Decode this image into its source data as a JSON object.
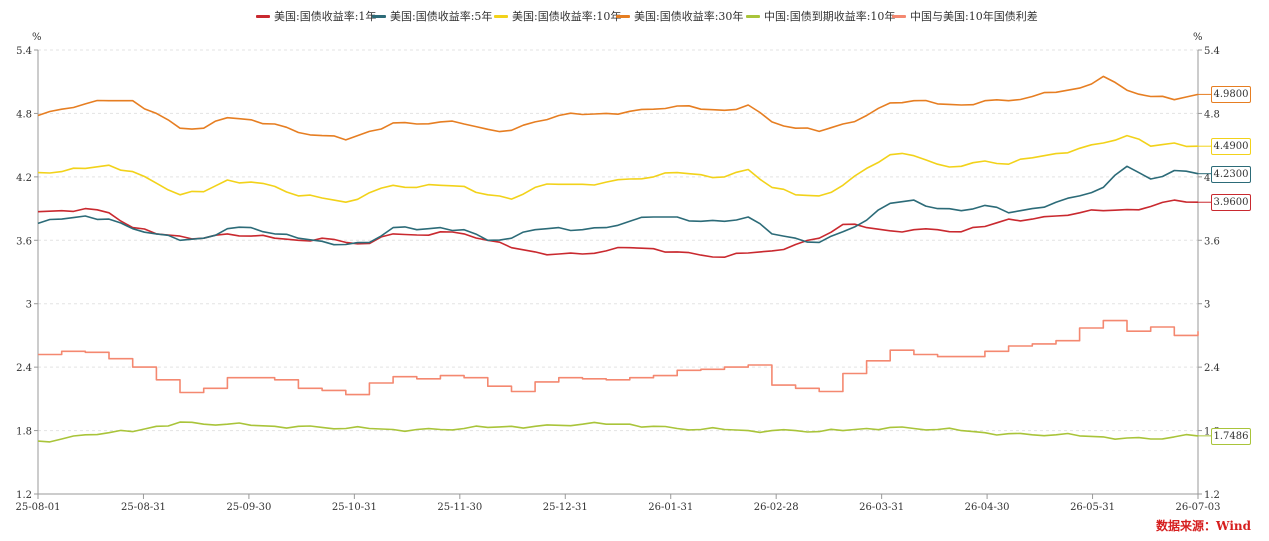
{
  "source": "数据来源：Wind",
  "unit_left": "%",
  "unit_right": "%",
  "chart_data": {
    "type": "line",
    "y_range": [
      1.2,
      5.4
    ],
    "y_ticks": [
      "5.4",
      "4.8",
      "4.2",
      "3.6",
      "3",
      "2.4",
      "1.8",
      "1.2"
    ],
    "x_ticks": [
      "25-08-01",
      "25-08-31",
      "25-09-30",
      "25-10-31",
      "25-11-30",
      "25-12-31",
      "26-01-31",
      "26-02-28",
      "26-03-31",
      "26-04-30",
      "26-05-31",
      "26-07-03"
    ],
    "grid": true,
    "legend": "top",
    "series": [
      {
        "name": "美国:国债收益率:1年",
        "color": "#c9292f",
        "step": false,
        "last_label": "3.9600",
        "values": [
          3.87,
          3.88,
          3.9,
          3.86,
          3.72,
          3.66,
          3.64,
          3.62,
          3.66,
          3.64,
          3.62,
          3.6,
          3.62,
          3.58,
          3.57,
          3.66,
          3.65,
          3.68,
          3.66,
          3.6,
          3.53,
          3.49,
          3.47,
          3.47,
          3.5,
          3.53,
          3.52,
          3.49,
          3.46,
          3.44,
          3.48,
          3.5,
          3.56,
          3.62,
          3.75,
          3.72,
          3.69,
          3.7,
          3.7,
          3.68,
          3.73,
          3.8,
          3.8,
          3.83,
          3.86,
          3.88,
          3.89,
          3.92,
          3.98,
          3.96
        ]
      },
      {
        "name": "美国:国债收益率:5年",
        "color": "#2c6b78",
        "step": false,
        "last_label": "4.2300",
        "values": [
          3.76,
          3.8,
          3.83,
          3.8,
          3.71,
          3.66,
          3.6,
          3.62,
          3.71,
          3.72,
          3.66,
          3.62,
          3.59,
          3.56,
          3.58,
          3.72,
          3.7,
          3.72,
          3.7,
          3.6,
          3.62,
          3.7,
          3.72,
          3.7,
          3.72,
          3.78,
          3.82,
          3.82,
          3.78,
          3.78,
          3.82,
          3.66,
          3.62,
          3.58,
          3.68,
          3.79,
          3.95,
          3.98,
          3.9,
          3.88,
          3.93,
          3.86,
          3.9,
          3.96,
          4.02,
          4.1,
          4.3,
          4.18,
          4.26,
          4.23
        ]
      },
      {
        "name": "美国:国债收益率:10年",
        "color": "#f2d21a",
        "step": false,
        "last_label": "4.4900",
        "values": [
          4.24,
          4.25,
          4.28,
          4.31,
          4.25,
          4.14,
          4.03,
          4.06,
          4.17,
          4.15,
          4.11,
          4.02,
          4.0,
          3.96,
          4.05,
          4.12,
          4.1,
          4.12,
          4.11,
          4.03,
          3.99,
          4.1,
          4.13,
          4.13,
          4.15,
          4.18,
          4.2,
          4.24,
          4.22,
          4.2,
          4.27,
          4.1,
          4.03,
          4.02,
          4.12,
          4.28,
          4.41,
          4.4,
          4.32,
          4.3,
          4.35,
          4.32,
          4.38,
          4.42,
          4.47,
          4.52,
          4.59,
          4.49,
          4.52,
          4.49
        ]
      },
      {
        "name": "美国:国债收益率:30年",
        "color": "#e67e22",
        "step": false,
        "last_label": "4.9800",
        "values": [
          4.78,
          4.84,
          4.89,
          4.92,
          4.92,
          4.8,
          4.66,
          4.66,
          4.76,
          4.74,
          4.7,
          4.62,
          4.59,
          4.55,
          4.63,
          4.71,
          4.7,
          4.72,
          4.7,
          4.65,
          4.64,
          4.72,
          4.78,
          4.79,
          4.8,
          4.82,
          4.84,
          4.87,
          4.84,
          4.83,
          4.88,
          4.72,
          4.66,
          4.63,
          4.7,
          4.78,
          4.9,
          4.92,
          4.89,
          4.88,
          4.92,
          4.92,
          4.96,
          5.0,
          5.04,
          5.15,
          5.02,
          4.96,
          4.93,
          4.98
        ]
      },
      {
        "name": "中国:国债到期收益率:10年",
        "color": "#a9c43a",
        "step": false,
        "last_label": "1.7486",
        "values": [
          1.7,
          1.72,
          1.76,
          1.78,
          1.79,
          1.84,
          1.88,
          1.86,
          1.86,
          1.85,
          1.84,
          1.84,
          1.83,
          1.82,
          1.82,
          1.81,
          1.81,
          1.81,
          1.82,
          1.83,
          1.84,
          1.84,
          1.85,
          1.86,
          1.86,
          1.86,
          1.84,
          1.82,
          1.81,
          1.81,
          1.8,
          1.8,
          1.8,
          1.79,
          1.8,
          1.82,
          1.83,
          1.82,
          1.81,
          1.8,
          1.78,
          1.77,
          1.76,
          1.76,
          1.75,
          1.74,
          1.73,
          1.72,
          1.74,
          1.75
        ]
      },
      {
        "name": "中国与美国:10年国债利差",
        "color": "#f48870",
        "step": true,
        "last_label": "",
        "values": [
          2.52,
          2.55,
          2.54,
          2.48,
          2.4,
          2.28,
          2.16,
          2.2,
          2.3,
          2.3,
          2.28,
          2.2,
          2.18,
          2.14,
          2.25,
          2.31,
          2.29,
          2.32,
          2.3,
          2.22,
          2.17,
          2.26,
          2.3,
          2.29,
          2.28,
          2.3,
          2.32,
          2.37,
          2.38,
          2.4,
          2.42,
          2.23,
          2.2,
          2.17,
          2.34,
          2.46,
          2.56,
          2.52,
          2.5,
          2.5,
          2.55,
          2.6,
          2.62,
          2.65,
          2.77,
          2.84,
          2.74,
          2.78,
          2.7,
          2.74
        ]
      }
    ]
  }
}
